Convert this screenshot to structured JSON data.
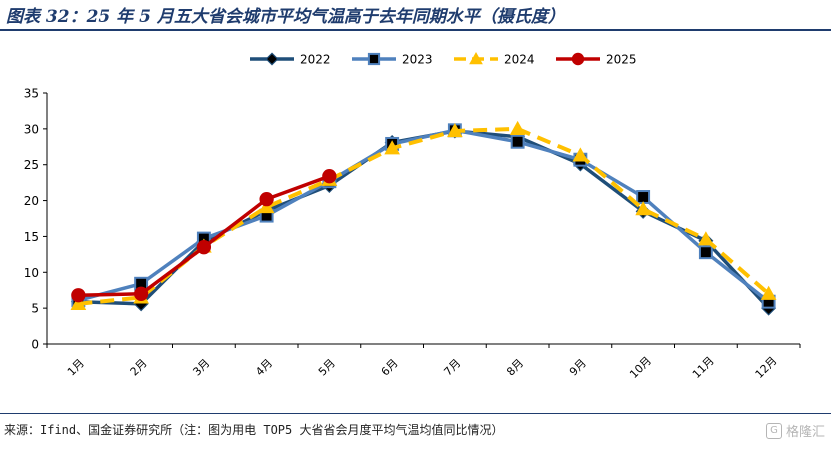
{
  "header": {
    "title": "图表 32：25 年 5 月五大省会城市平均气温高于去年同期水平（摄氏度）"
  },
  "footer": {
    "source": "来源：Ifind、国金证券研究所（注：图为用电 TOP5 大省省会月度平均气温均值同比情况）",
    "watermark": "格隆汇",
    "watermark_icon": "G"
  },
  "chart_data": {
    "type": "line",
    "categories": [
      "1月",
      "2月",
      "3月",
      "4月",
      "5月",
      "6月",
      "7月",
      "8月",
      "9月",
      "10月",
      "11月",
      "12月"
    ],
    "ylim": [
      0,
      35
    ],
    "yticks": [
      0,
      5,
      10,
      15,
      20,
      25,
      30,
      35
    ],
    "grid": false,
    "legend": "top",
    "series": [
      {
        "name": "2022",
        "color": "#1f4e79",
        "marker": "diamond",
        "dashed": false,
        "values": [
          5.9,
          5.6,
          14.3,
          18.6,
          22.1,
          28.1,
          29.7,
          28.9,
          25.1,
          18.5,
          14.4,
          5.0
        ]
      },
      {
        "name": "2023",
        "color": "#4f81bd",
        "marker": "square",
        "dashed": false,
        "values": [
          6.1,
          8.4,
          14.7,
          17.9,
          22.7,
          27.9,
          29.8,
          28.2,
          25.7,
          20.5,
          12.8,
          5.9
        ]
      },
      {
        "name": "2024",
        "color": "#ffc000",
        "marker": "triangle",
        "dashed": true,
        "values": [
          5.6,
          6.5,
          13.6,
          19.1,
          22.9,
          27.3,
          29.7,
          30.0,
          26.3,
          18.8,
          14.6,
          7.0
        ]
      },
      {
        "name": "2025",
        "color": "#c00000",
        "marker": "circle",
        "dashed": false,
        "values": [
          6.8,
          7.0,
          13.5,
          20.2,
          23.4,
          null,
          null,
          null,
          null,
          null,
          null,
          null
        ]
      }
    ]
  }
}
